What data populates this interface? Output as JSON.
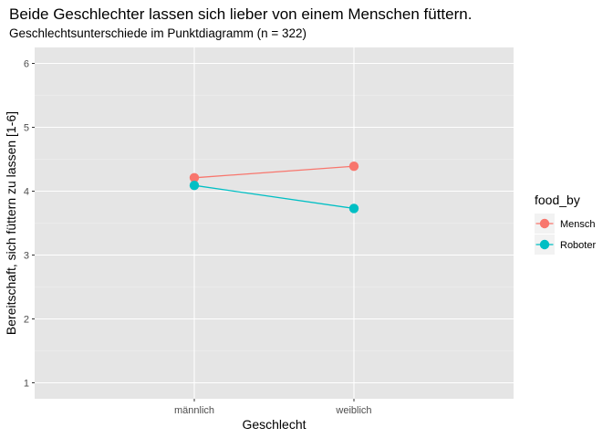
{
  "chart_data": {
    "type": "line",
    "title": "Beide Geschlechter lassen sich lieber von einem Menschen füttern.",
    "subtitle": "Geschlechtsunterschiede im Punktdiagramm (n = 322)",
    "xlabel": "Geschlecht",
    "ylabel": "Bereitschaft, sich füttern zu lassen [1-6]",
    "categories": [
      "männlich",
      "weiblich"
    ],
    "ylim": [
      0.75,
      6.25
    ],
    "yticks": [
      1,
      2,
      3,
      4,
      5,
      6
    ],
    "grid": true,
    "legend": {
      "title": "food_by",
      "position": "right"
    },
    "series": [
      {
        "name": "Mensch",
        "color": "#F8766D",
        "values": [
          4.21,
          4.39
        ]
      },
      {
        "name": "Roboter",
        "color": "#00BFC4",
        "values": [
          4.09,
          3.73
        ]
      }
    ]
  }
}
